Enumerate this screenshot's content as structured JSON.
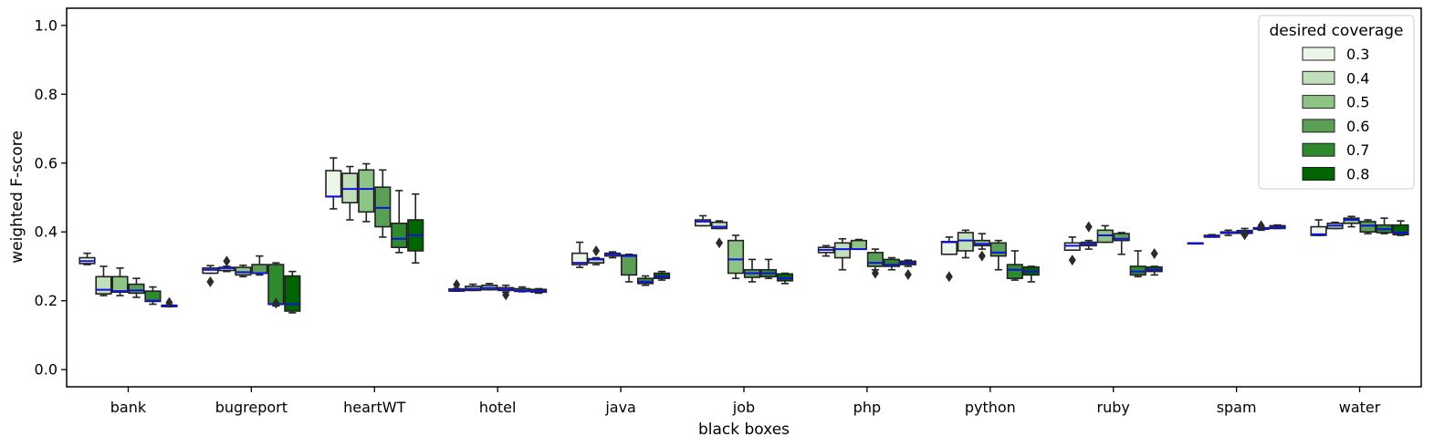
{
  "chart_data": {
    "type": "box",
    "xlabel": "black boxes",
    "ylabel": "weighted F-score",
    "ylim": [
      -0.05,
      1.05
    ],
    "yticks": [
      0.0,
      0.2,
      0.4,
      0.6,
      0.8,
      1.0
    ],
    "ytick_labels": [
      "0.0",
      "0.2",
      "0.4",
      "0.6",
      "0.8",
      "1.0"
    ],
    "grid": false,
    "legend": {
      "title": "desired coverage",
      "placement": "top-right",
      "entries": [
        "0.3",
        "0.4",
        "0.5",
        "0.6",
        "0.7",
        "0.8"
      ]
    },
    "colors": {
      "series": [
        "#ebf5e8",
        "#c1dfba",
        "#8fc487",
        "#5a9f55",
        "#2f8a2f",
        "#006400"
      ],
      "median": "#1010e0",
      "outline": "#222222"
    },
    "categories": [
      "bank",
      "bugreport",
      "heartWT",
      "hotel",
      "java",
      "job",
      "php",
      "python",
      "ruby",
      "spam",
      "water"
    ],
    "series": [
      {
        "name": "0.3",
        "boxes": [
          {
            "whislo": 0.305,
            "q1": 0.308,
            "med": 0.315,
            "q3": 0.325,
            "whishi": 0.338,
            "fliers": []
          },
          {
            "whislo": 0.28,
            "q1": 0.28,
            "med": 0.29,
            "q3": 0.295,
            "whishi": 0.302,
            "fliers": [
              0.255
            ]
          },
          {
            "whislo": 0.467,
            "q1": 0.502,
            "med": 0.503,
            "q3": 0.578,
            "whishi": 0.615,
            "fliers": []
          },
          {
            "whislo": 0.228,
            "q1": 0.228,
            "med": 0.231,
            "q3": 0.234,
            "whishi": 0.236,
            "fliers": [
              0.247
            ]
          },
          {
            "whislo": 0.297,
            "q1": 0.305,
            "med": 0.31,
            "q3": 0.338,
            "whishi": 0.37,
            "fliers": []
          },
          {
            "whislo": 0.418,
            "q1": 0.418,
            "med": 0.43,
            "q3": 0.435,
            "whishi": 0.447,
            "fliers": []
          },
          {
            "whislo": 0.33,
            "q1": 0.34,
            "med": 0.348,
            "q3": 0.355,
            "whishi": 0.36,
            "fliers": []
          },
          {
            "whislo": 0.335,
            "q1": 0.335,
            "med": 0.37,
            "q3": 0.372,
            "whishi": 0.385,
            "fliers": [
              0.27
            ]
          },
          {
            "whislo": 0.347,
            "q1": 0.347,
            "med": 0.36,
            "q3": 0.368,
            "whishi": 0.385,
            "fliers": [
              0.318
            ]
          },
          {
            "whislo": 0.366,
            "q1": 0.366,
            "med": 0.367,
            "q3": 0.368,
            "whishi": 0.368,
            "fliers": []
          },
          {
            "whislo": 0.39,
            "q1": 0.39,
            "med": 0.393,
            "q3": 0.415,
            "whishi": 0.435,
            "fliers": []
          }
        ]
      },
      {
        "name": "0.4",
        "boxes": [
          {
            "whislo": 0.215,
            "q1": 0.22,
            "med": 0.232,
            "q3": 0.27,
            "whishi": 0.3,
            "fliers": []
          },
          {
            "whislo": 0.285,
            "q1": 0.288,
            "med": 0.295,
            "q3": 0.297,
            "whishi": 0.3,
            "fliers": [
              0.315
            ]
          },
          {
            "whislo": 0.435,
            "q1": 0.485,
            "med": 0.525,
            "q3": 0.57,
            "whishi": 0.59,
            "fliers": []
          },
          {
            "whislo": 0.23,
            "q1": 0.23,
            "med": 0.235,
            "q3": 0.242,
            "whishi": 0.248,
            "fliers": []
          },
          {
            "whislo": 0.305,
            "q1": 0.31,
            "med": 0.32,
            "q3": 0.322,
            "whishi": 0.325,
            "fliers": [
              0.345
            ]
          },
          {
            "whislo": 0.41,
            "q1": 0.41,
            "med": 0.415,
            "q3": 0.428,
            "whishi": 0.432,
            "fliers": [
              0.368
            ]
          },
          {
            "whislo": 0.29,
            "q1": 0.325,
            "med": 0.35,
            "q3": 0.368,
            "whishi": 0.38,
            "fliers": []
          },
          {
            "whislo": 0.325,
            "q1": 0.345,
            "med": 0.375,
            "q3": 0.398,
            "whishi": 0.405,
            "fliers": []
          },
          {
            "whislo": 0.35,
            "q1": 0.36,
            "med": 0.365,
            "q3": 0.37,
            "whishi": 0.375,
            "fliers": [
              0.415
            ]
          },
          {
            "whislo": 0.385,
            "q1": 0.385,
            "med": 0.387,
            "q3": 0.39,
            "whishi": 0.392,
            "fliers": []
          },
          {
            "whislo": 0.41,
            "q1": 0.41,
            "med": 0.418,
            "q3": 0.425,
            "whishi": 0.428,
            "fliers": []
          }
        ]
      },
      {
        "name": "0.5",
        "boxes": [
          {
            "whislo": 0.215,
            "q1": 0.225,
            "med": 0.228,
            "q3": 0.27,
            "whishi": 0.295,
            "fliers": []
          },
          {
            "whislo": 0.27,
            "q1": 0.275,
            "med": 0.283,
            "q3": 0.297,
            "whishi": 0.303,
            "fliers": []
          },
          {
            "whislo": 0.43,
            "q1": 0.458,
            "med": 0.525,
            "q3": 0.58,
            "whishi": 0.598,
            "fliers": []
          },
          {
            "whislo": 0.232,
            "q1": 0.232,
            "med": 0.237,
            "q3": 0.245,
            "whishi": 0.25,
            "fliers": []
          },
          {
            "whislo": 0.325,
            "q1": 0.33,
            "med": 0.335,
            "q3": 0.338,
            "whishi": 0.342,
            "fliers": []
          },
          {
            "whislo": 0.265,
            "q1": 0.28,
            "med": 0.32,
            "q3": 0.375,
            "whishi": 0.39,
            "fliers": []
          },
          {
            "whislo": 0.35,
            "q1": 0.35,
            "med": 0.35,
            "q3": 0.375,
            "whishi": 0.378,
            "fliers": []
          },
          {
            "whislo": 0.35,
            "q1": 0.36,
            "med": 0.365,
            "q3": 0.375,
            "whishi": 0.395,
            "fliers": [
              0.33
            ]
          },
          {
            "whislo": 0.37,
            "q1": 0.37,
            "med": 0.39,
            "q3": 0.405,
            "whishi": 0.418,
            "fliers": []
          },
          {
            "whislo": 0.39,
            "q1": 0.396,
            "med": 0.398,
            "q3": 0.4,
            "whishi": 0.405,
            "fliers": []
          },
          {
            "whislo": 0.415,
            "q1": 0.425,
            "med": 0.435,
            "q3": 0.44,
            "whishi": 0.445,
            "fliers": []
          }
        ]
      },
      {
        "name": "0.6",
        "boxes": [
          {
            "whislo": 0.21,
            "q1": 0.222,
            "med": 0.23,
            "q3": 0.248,
            "whishi": 0.265,
            "fliers": []
          },
          {
            "whislo": 0.275,
            "q1": 0.28,
            "med": 0.28,
            "q3": 0.305,
            "whishi": 0.33,
            "fliers": []
          },
          {
            "whislo": 0.385,
            "q1": 0.415,
            "med": 0.47,
            "q3": 0.53,
            "whishi": 0.58,
            "fliers": []
          },
          {
            "whislo": 0.225,
            "q1": 0.23,
            "med": 0.233,
            "q3": 0.238,
            "whishi": 0.245,
            "fliers": [
              0.217
            ]
          },
          {
            "whislo": 0.255,
            "q1": 0.275,
            "med": 0.33,
            "q3": 0.333,
            "whishi": 0.335,
            "fliers": []
          },
          {
            "whislo": 0.255,
            "q1": 0.268,
            "med": 0.28,
            "q3": 0.29,
            "whishi": 0.32,
            "fliers": []
          },
          {
            "whislo": 0.29,
            "q1": 0.3,
            "med": 0.31,
            "q3": 0.34,
            "whishi": 0.35,
            "fliers": [
              0.28
            ]
          },
          {
            "whislo": 0.29,
            "q1": 0.33,
            "med": 0.34,
            "q3": 0.368,
            "whishi": 0.375,
            "fliers": []
          },
          {
            "whislo": 0.335,
            "q1": 0.375,
            "med": 0.38,
            "q3": 0.395,
            "whishi": 0.398,
            "fliers": []
          },
          {
            "whislo": 0.393,
            "q1": 0.396,
            "med": 0.4,
            "q3": 0.404,
            "whishi": 0.41,
            "fliers": [
              0.392
            ]
          },
          {
            "whislo": 0.395,
            "q1": 0.4,
            "med": 0.418,
            "q3": 0.43,
            "whishi": 0.435,
            "fliers": []
          }
        ]
      },
      {
        "name": "0.7",
        "boxes": [
          {
            "whislo": 0.19,
            "q1": 0.198,
            "med": 0.2,
            "q3": 0.228,
            "whishi": 0.24,
            "fliers": []
          },
          {
            "whislo": 0.185,
            "q1": 0.19,
            "med": 0.19,
            "q3": 0.305,
            "whishi": 0.31,
            "fliers": [
              0.193
            ]
          },
          {
            "whislo": 0.34,
            "q1": 0.355,
            "med": 0.38,
            "q3": 0.425,
            "whishi": 0.52,
            "fliers": []
          },
          {
            "whislo": 0.226,
            "q1": 0.227,
            "med": 0.229,
            "q3": 0.235,
            "whishi": 0.24,
            "fliers": []
          },
          {
            "whislo": 0.245,
            "q1": 0.25,
            "med": 0.255,
            "q3": 0.265,
            "whishi": 0.272,
            "fliers": []
          },
          {
            "whislo": 0.265,
            "q1": 0.27,
            "med": 0.28,
            "q3": 0.29,
            "whishi": 0.32,
            "fliers": []
          },
          {
            "whislo": 0.29,
            "q1": 0.3,
            "med": 0.305,
            "q3": 0.32,
            "whishi": 0.325,
            "fliers": []
          },
          {
            "whislo": 0.26,
            "q1": 0.265,
            "med": 0.29,
            "q3": 0.305,
            "whishi": 0.345,
            "fliers": []
          },
          {
            "whislo": 0.27,
            "q1": 0.275,
            "med": 0.285,
            "q3": 0.3,
            "whishi": 0.345,
            "fliers": []
          },
          {
            "whislo": 0.405,
            "q1": 0.408,
            "med": 0.41,
            "q3": 0.412,
            "whishi": 0.414,
            "fliers": [
              0.418
            ]
          },
          {
            "whislo": 0.395,
            "q1": 0.398,
            "med": 0.408,
            "q3": 0.42,
            "whishi": 0.44,
            "fliers": []
          }
        ]
      },
      {
        "name": "0.8",
        "boxes": [
          {
            "whislo": 0.183,
            "q1": 0.183,
            "med": 0.185,
            "q3": 0.187,
            "whishi": 0.188,
            "fliers": [
              0.195
            ]
          },
          {
            "whislo": 0.165,
            "q1": 0.17,
            "med": 0.19,
            "q3": 0.272,
            "whishi": 0.285,
            "fliers": []
          },
          {
            "whislo": 0.31,
            "q1": 0.345,
            "med": 0.39,
            "q3": 0.435,
            "whishi": 0.51,
            "fliers": []
          },
          {
            "whislo": 0.222,
            "q1": 0.225,
            "med": 0.228,
            "q3": 0.233,
            "whishi": 0.235,
            "fliers": []
          },
          {
            "whislo": 0.26,
            "q1": 0.265,
            "med": 0.27,
            "q3": 0.28,
            "whishi": 0.285,
            "fliers": []
          },
          {
            "whislo": 0.25,
            "q1": 0.258,
            "med": 0.265,
            "q3": 0.278,
            "whishi": 0.28,
            "fliers": []
          },
          {
            "whislo": 0.3,
            "q1": 0.305,
            "med": 0.31,
            "q3": 0.315,
            "whishi": 0.318,
            "fliers": [
              0.276
            ]
          },
          {
            "whislo": 0.255,
            "q1": 0.275,
            "med": 0.285,
            "q3": 0.298,
            "whishi": 0.3,
            "fliers": []
          },
          {
            "whislo": 0.275,
            "q1": 0.285,
            "med": 0.29,
            "q3": 0.298,
            "whishi": 0.3,
            "fliers": [
              0.337
            ]
          },
          {
            "whislo": 0.41,
            "q1": 0.41,
            "med": 0.413,
            "q3": 0.418,
            "whishi": 0.42,
            "fliers": []
          },
          {
            "whislo": 0.39,
            "q1": 0.392,
            "med": 0.398,
            "q3": 0.42,
            "whishi": 0.432,
            "fliers": []
          }
        ]
      }
    ]
  }
}
